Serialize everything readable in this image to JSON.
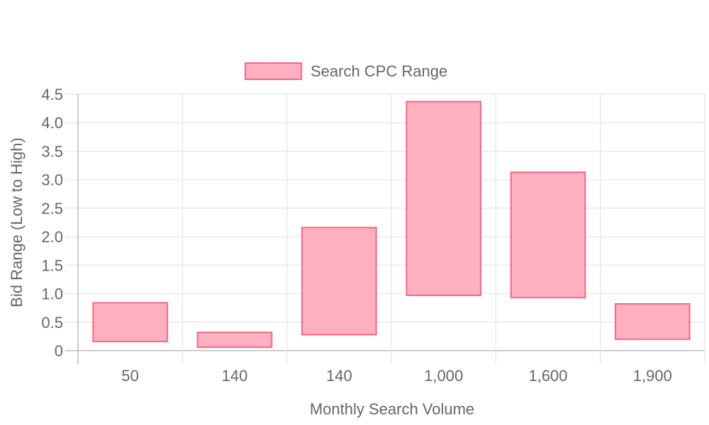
{
  "chart_data": {
    "type": "bar",
    "subtype": "floating-range",
    "categories": [
      "50",
      "140",
      "140",
      "1,000",
      "1,600",
      "1,900"
    ],
    "series": [
      {
        "name": "Search CPC Range",
        "low": [
          0.16,
          0.06,
          0.28,
          0.97,
          0.93,
          0.2
        ],
        "high": [
          0.84,
          0.32,
          2.16,
          4.37,
          3.13,
          0.82
        ]
      }
    ],
    "xlabel": "Monthly Search Volume",
    "ylabel": "Bid Range (Low to High)",
    "ylim": [
      0,
      4.5
    ],
    "yticks": [
      "0",
      "0.5",
      "1.0",
      "1.5",
      "2.0",
      "2.5",
      "3.0",
      "3.5",
      "4.0",
      "4.5"
    ],
    "grid": true,
    "legend_position": "top",
    "colors": {
      "bar_fill": "#ffb1c1",
      "bar_stroke": "#ff6384",
      "grid": "#e5e5e5",
      "axis": "#bdbdbd",
      "text": "#666666"
    }
  }
}
